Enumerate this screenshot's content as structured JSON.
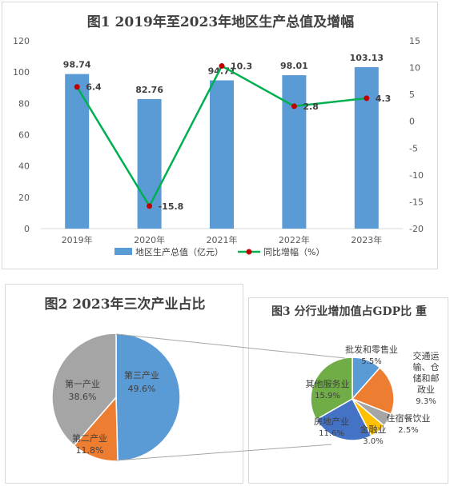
{
  "chart_data": [
    {
      "type": "bar+line",
      "title": "图1 2019年至2023年地区生产总值及增幅",
      "categories": [
        "2019年",
        "2020年",
        "2021年",
        "2022年",
        "2023年"
      ],
      "series": [
        {
          "name": "地区生产总值（亿元）",
          "type": "bar",
          "axis": "left",
          "values": [
            98.74,
            82.76,
            94.71,
            98.01,
            103.13
          ],
          "labels": [
            "98.74",
            "82.76",
            "94.71",
            "98.01",
            "103.13"
          ],
          "color": "#5b9bd5"
        },
        {
          "name": "同比增幅（%）",
          "type": "line",
          "axis": "right",
          "values": [
            6.4,
            -15.8,
            10.3,
            2.8,
            4.3
          ],
          "labels": [
            "6.4",
            "-15.8",
            "10.3",
            "2.8",
            "4.3"
          ],
          "color": "#00b050",
          "marker_color": "#c00000"
        }
      ],
      "y_left": {
        "ylim": [
          0,
          120
        ],
        "ticks": [
          "0",
          "20",
          "40",
          "60",
          "80",
          "100",
          "120"
        ]
      },
      "y_right": {
        "ylim": [
          -20,
          15
        ],
        "ticks": [
          "-20",
          "-15",
          "-10",
          "-5",
          "0",
          "5",
          "10",
          "15"
        ]
      },
      "grid": false,
      "legend": "bottom"
    },
    {
      "type": "pie",
      "title": "图2 2023年三次产业占比",
      "slices": [
        {
          "name": "第三产业",
          "value": 49.6,
          "label": "49.6%",
          "color": "#5b9bd5"
        },
        {
          "name": "第二产业",
          "value": 11.8,
          "label": "11.8%",
          "color": "#ed7d31"
        },
        {
          "name": "第一产业",
          "value": 38.6,
          "label": "38.6%",
          "color": "#a5a5a5"
        }
      ]
    },
    {
      "type": "pie",
      "title": "图3 分行业增加值占GDP比 重",
      "slices": [
        {
          "name": "批发和零售业",
          "value": 5.5,
          "label": "5.5%",
          "color": "#5b9bd5"
        },
        {
          "name": "交通运输、仓储和邮政业",
          "value": 9.3,
          "label": "9.3%",
          "color": "#ed7d31"
        },
        {
          "name": "住宿餐饮业",
          "value": 2.5,
          "label": "2.5%",
          "color": "#a5a5a5"
        },
        {
          "name": "金融业",
          "value": 3.0,
          "label": "3.0%",
          "color": "#ffc000"
        },
        {
          "name": "房地产业",
          "value": 11.6,
          "label": "11.6%",
          "color": "#4472c4"
        },
        {
          "name": "其他服务业",
          "value": 15.9,
          "label": "15.9%",
          "color": "#70ad47"
        }
      ]
    }
  ]
}
